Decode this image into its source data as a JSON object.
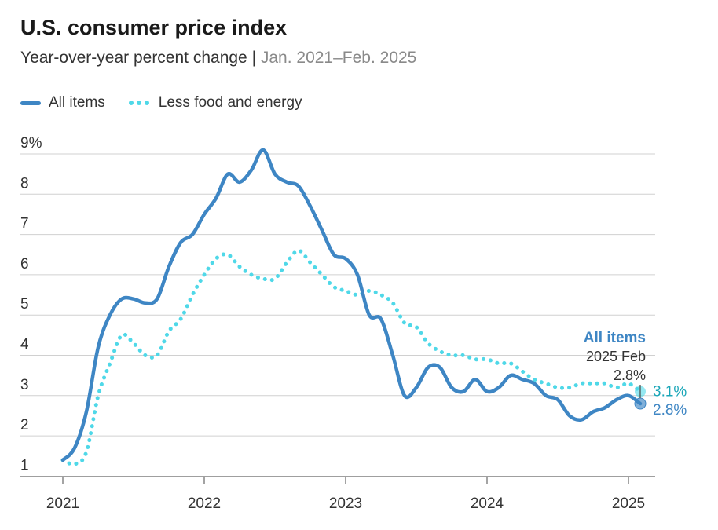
{
  "chart_data": {
    "type": "line",
    "title": "U.S. consumer price index",
    "subtitle_main": "Year-over-year percent change",
    "subtitle_sep": " | ",
    "subtitle_range": "Jan. 2021–Feb. 2025",
    "x": [
      "2021-01",
      "2021-02",
      "2021-03",
      "2021-04",
      "2021-05",
      "2021-06",
      "2021-07",
      "2021-08",
      "2021-09",
      "2021-10",
      "2021-11",
      "2021-12",
      "2022-01",
      "2022-02",
      "2022-03",
      "2022-04",
      "2022-05",
      "2022-06",
      "2022-07",
      "2022-08",
      "2022-09",
      "2022-10",
      "2022-11",
      "2022-12",
      "2023-01",
      "2023-02",
      "2023-03",
      "2023-04",
      "2023-05",
      "2023-06",
      "2023-07",
      "2023-08",
      "2023-09",
      "2023-10",
      "2023-11",
      "2023-12",
      "2024-01",
      "2024-02",
      "2024-03",
      "2024-04",
      "2024-05",
      "2024-06",
      "2024-07",
      "2024-08",
      "2024-09",
      "2024-10",
      "2024-11",
      "2024-12",
      "2025-01",
      "2025-02"
    ],
    "series": [
      {
        "name": "All items",
        "color": "#3e86c4",
        "style": "solid",
        "values": [
          1.4,
          1.7,
          2.6,
          4.2,
          5.0,
          5.4,
          5.4,
          5.3,
          5.4,
          6.2,
          6.8,
          7.0,
          7.5,
          7.9,
          8.5,
          8.3,
          8.6,
          9.1,
          8.5,
          8.3,
          8.2,
          7.7,
          7.1,
          6.5,
          6.4,
          6.0,
          5.0,
          4.9,
          4.0,
          3.0,
          3.2,
          3.7,
          3.7,
          3.2,
          3.1,
          3.4,
          3.1,
          3.2,
          3.5,
          3.4,
          3.3,
          3.0,
          2.9,
          2.5,
          2.4,
          2.6,
          2.7,
          2.9,
          3.0,
          2.8
        ]
      },
      {
        "name": "Less food and energy",
        "color": "#4fd8e8",
        "style": "dotted",
        "values": [
          1.4,
          1.3,
          1.6,
          3.0,
          3.8,
          4.5,
          4.3,
          4.0,
          4.0,
          4.6,
          4.9,
          5.5,
          6.0,
          6.4,
          6.5,
          6.2,
          6.0,
          5.9,
          5.9,
          6.3,
          6.6,
          6.3,
          6.0,
          5.7,
          5.6,
          5.5,
          5.6,
          5.5,
          5.3,
          4.8,
          4.7,
          4.3,
          4.1,
          4.0,
          4.0,
          3.9,
          3.9,
          3.8,
          3.8,
          3.6,
          3.4,
          3.3,
          3.2,
          3.2,
          3.3,
          3.3,
          3.3,
          3.2,
          3.3,
          3.1
        ]
      }
    ],
    "y_ticks": [
      "9%",
      "8",
      "7",
      "6",
      "5",
      "4",
      "3",
      "2",
      "1"
    ],
    "y_tick_values": [
      9,
      8,
      7,
      6,
      5,
      4,
      3,
      2,
      1
    ],
    "x_ticks": [
      "2021",
      "2022",
      "2023",
      "2024",
      "2025"
    ],
    "ylim": [
      0.75,
      9.25
    ],
    "grid": true,
    "legend_position": "top-left",
    "annotation": {
      "title": "All items",
      "date": "2025 Feb",
      "value": "2.8%",
      "end_label_core": "3.1%",
      "end_label_all": "2.8%"
    }
  }
}
